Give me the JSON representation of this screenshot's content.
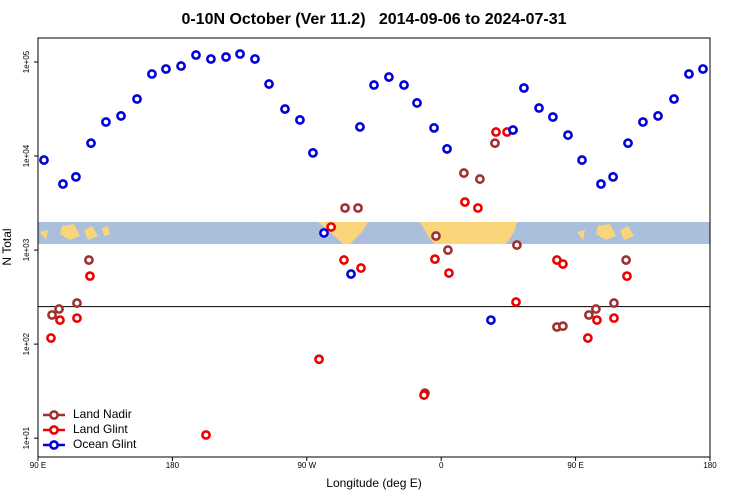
{
  "chart_data": {
    "type": "scatter",
    "title": "0-10N October (Ver 11.2)   2014-09-06 to 2024-07-31",
    "x_label": "Longitude (deg E)",
    "y_label": "N Total",
    "xlim": [
      90,
      540
    ],
    "xticks": [
      {
        "value": 90,
        "label": "90 E"
      },
      {
        "value": 180,
        "label": "180"
      },
      {
        "value": 270,
        "label": "90 W"
      },
      {
        "value": 360,
        "label": "0"
      },
      {
        "value": 450,
        "label": "90 E"
      },
      {
        "value": 540,
        "label": "180"
      }
    ],
    "ylim": [
      6.3,
      180000
    ],
    "log_y": true,
    "yticks": [
      {
        "value": 10,
        "label": "1e+01"
      },
      {
        "value": 100,
        "label": "1e+02"
      },
      {
        "value": 1000,
        "label": "1e+03"
      },
      {
        "value": 10000,
        "label": "1e+04"
      },
      {
        "value": 100000,
        "label": "1e+05"
      }
    ],
    "reference_line": 250,
    "legend": "bottom-left",
    "series": [
      {
        "name": "Land Nadir",
        "color": "#a03030",
        "x": [
          99.4,
          104.1,
          116.1,
          124.1,
          295.6,
          304.3,
          349.1,
          356.5,
          364.5,
          375.2,
          385.9,
          396.0,
          410.7,
          437.5,
          441.5,
          458.9,
          463.6,
          475.7,
          483.8
        ],
        "values": [
          204,
          236,
          273,
          783,
          2800,
          2800,
          30.1,
          1410,
          1000,
          6590,
          5690,
          13700,
          1130,
          152,
          155,
          204,
          236,
          273,
          783
        ]
      },
      {
        "name": "Land Glint",
        "color": "#ee0000",
        "x": [
          98.7,
          104.7,
          116.1,
          124.8,
          202.5,
          278.2,
          286.3,
          294.9,
          306.3,
          348.5,
          355.8,
          365.2,
          375.9,
          384.6,
          396.7,
          404.1,
          410.1,
          437.5,
          441.5,
          458.2,
          464.3,
          475.7,
          484.4
        ],
        "values": [
          116,
          180,
          189,
          528,
          10.8,
          69,
          1760,
          783,
          644,
          28.7,
          801,
          569,
          3240,
          2800,
          18000,
          18000,
          280,
          783,
          710,
          116,
          180,
          189,
          528
        ]
      },
      {
        "name": "Ocean Glint",
        "color": "#0000dd",
        "x": [
          94.0,
          106.7,
          115.4,
          125.5,
          135.5,
          145.6,
          156.3,
          166.3,
          175.7,
          185.8,
          195.8,
          205.8,
          215.9,
          225.3,
          235.3,
          244.7,
          255.4,
          265.4,
          274.1,
          281.5,
          299.6,
          305.6,
          315.0,
          325.0,
          335.1,
          343.8,
          355.2,
          363.9,
          393.3,
          408.1,
          415.4,
          425.5,
          434.8,
          444.9,
          454.3,
          467.0,
          475.1,
          485.1,
          495.1,
          505.2,
          515.9,
          525.9,
          535.3
        ],
        "values": [
          9060,
          5040,
          6000,
          13700,
          23000,
          26700,
          40400,
          74500,
          84300,
          90600,
          118600,
          107700,
          113000,
          121600,
          107700,
          58300,
          31600,
          24200,
          10800,
          1520,
          556,
          20400,
          56900,
          69200,
          56900,
          36700,
          19900,
          11900,
          180,
          18900,
          52900,
          32400,
          26000,
          16700,
          9060,
          5040,
          6000,
          13700,
          23000,
          26700,
          40400,
          74500,
          84300
        ]
      }
    ]
  }
}
